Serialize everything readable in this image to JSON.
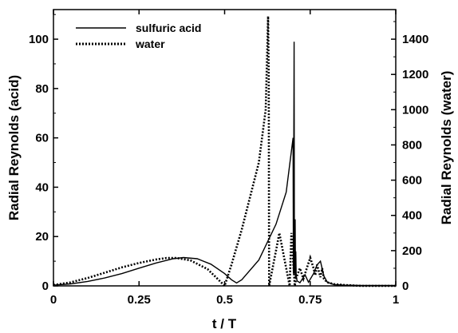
{
  "chart_data": {
    "type": "line",
    "xlabel": "t / T",
    "ylabel_left": "Radial  Reynolds (acid)",
    "ylabel_right": "Radial  Reynolds (water)",
    "xlim": [
      0,
      1
    ],
    "ylim_left": [
      0,
      112
    ],
    "ylim_right": [
      0,
      1568
    ],
    "x_ticks": [
      {
        "value": 0,
        "label": "0"
      },
      {
        "value": 0.25,
        "label": "0.25"
      },
      {
        "value": 0.5,
        "label": "0.5"
      },
      {
        "value": 0.75,
        "label": "0.75"
      },
      {
        "value": 1,
        "label": "1"
      }
    ],
    "y_left_ticks": [
      {
        "value": 0,
        "label": "0"
      },
      {
        "value": 20,
        "label": "20"
      },
      {
        "value": 40,
        "label": "40"
      },
      {
        "value": 60,
        "label": "60"
      },
      {
        "value": 80,
        "label": "80"
      },
      {
        "value": 100,
        "label": "100"
      }
    ],
    "y_right_ticks": [
      {
        "value": 0,
        "label": "0"
      },
      {
        "value": 200,
        "label": "200"
      },
      {
        "value": 400,
        "label": "400"
      },
      {
        "value": 600,
        "label": "600"
      },
      {
        "value": 800,
        "label": "800"
      },
      {
        "value": 1000,
        "label": "1000"
      },
      {
        "value": 1200,
        "label": "1200"
      },
      {
        "value": 1400,
        "label": "1400"
      }
    ],
    "legend_position": "top-left",
    "grid": false,
    "series": [
      {
        "name": "sulfuric acid",
        "axis": "left",
        "style": "solid",
        "color": "#000000",
        "x": [
          0,
          0.05,
          0.1,
          0.15,
          0.2,
          0.25,
          0.3,
          0.35,
          0.38,
          0.42,
          0.46,
          0.5,
          0.52,
          0.535,
          0.55,
          0.6,
          0.65,
          0.68,
          0.7,
          0.701,
          0.703,
          0.704,
          0.706,
          0.707,
          0.708,
          0.709,
          0.712,
          0.72,
          0.735,
          0.745,
          0.76,
          0.77,
          0.78,
          0.79,
          0.8,
          0.82,
          0.85,
          0.9,
          1.0
        ],
        "y": [
          0.3,
          0.8,
          1.8,
          3.2,
          5.0,
          7.2,
          9.3,
          11.0,
          11.5,
          11.0,
          8.8,
          5.0,
          2.5,
          1.2,
          2.5,
          10.5,
          25.0,
          38.0,
          60.0,
          5.0,
          99.0,
          5.0,
          27.0,
          3.0,
          14.0,
          4.0,
          2.0,
          1.3,
          4.5,
          1.5,
          5.0,
          8.5,
          10.0,
          4.0,
          1.5,
          0.5,
          0.3,
          0.2,
          0.2
        ]
      },
      {
        "name": "water",
        "axis": "right",
        "style": "dotted",
        "color": "#000000",
        "x": [
          0,
          0.05,
          0.1,
          0.15,
          0.2,
          0.25,
          0.3,
          0.33,
          0.36,
          0.4,
          0.45,
          0.49,
          0.5,
          0.52,
          0.55,
          0.6,
          0.62,
          0.627,
          0.629,
          0.63,
          0.65,
          0.66,
          0.68,
          0.69,
          0.695,
          0.7,
          0.705,
          0.71,
          0.72,
          0.73,
          0.74,
          0.75,
          0.76,
          0.765,
          0.77,
          0.78,
          0.785,
          0.79,
          0.8,
          0.82,
          0.85,
          0.9,
          1.0
        ],
        "y": [
          5,
          20,
          45,
          75,
          105,
          130,
          150,
          158,
          158,
          145,
          95,
          20,
          0,
          120,
          320,
          700,
          1000,
          1530,
          1200,
          0,
          200,
          300,
          100,
          0,
          300,
          150,
          0,
          50,
          100,
          40,
          100,
          160,
          100,
          60,
          120,
          50,
          100,
          40,
          20,
          10,
          5,
          0,
          0
        ]
      }
    ]
  }
}
